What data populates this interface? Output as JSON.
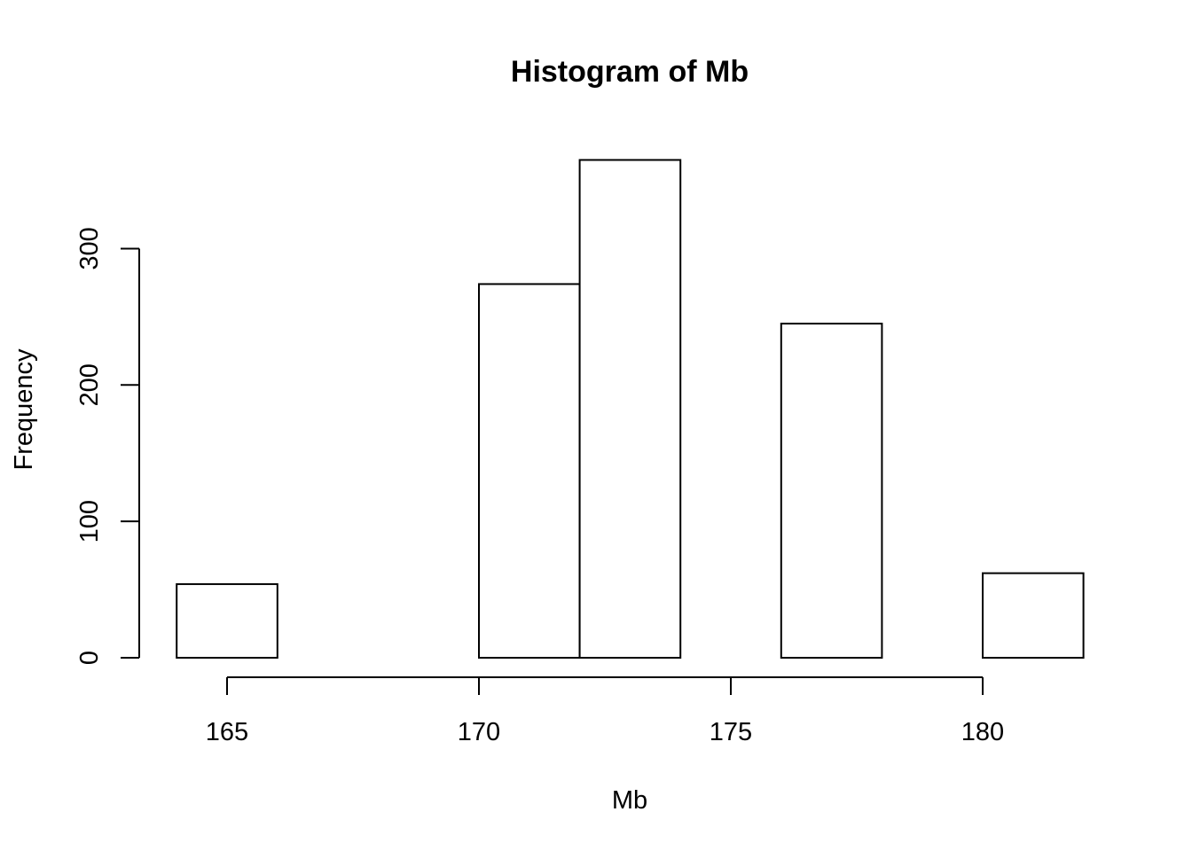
{
  "chart_data": {
    "type": "bar",
    "title": "Histogram of Mb",
    "xlabel": "Mb",
    "ylabel": "Frequency",
    "bins": [
      {
        "from": 164,
        "to": 166,
        "count": 54
      },
      {
        "from": 166,
        "to": 168,
        "count": 0
      },
      {
        "from": 168,
        "to": 170,
        "count": 0
      },
      {
        "from": 170,
        "to": 172,
        "count": 274
      },
      {
        "from": 172,
        "to": 174,
        "count": 365
      },
      {
        "from": 174,
        "to": 176,
        "count": 0
      },
      {
        "from": 176,
        "to": 178,
        "count": 245
      },
      {
        "from": 178,
        "to": 180,
        "count": 0
      },
      {
        "from": 180,
        "to": 182,
        "count": 62
      }
    ],
    "xticks": [
      "165",
      "170",
      "175",
      "180"
    ],
    "yticks": [
      "0",
      "100",
      "200",
      "300"
    ],
    "xlim": [
      164,
      182
    ],
    "ylim": [
      0,
      365
    ],
    "grid": false
  }
}
